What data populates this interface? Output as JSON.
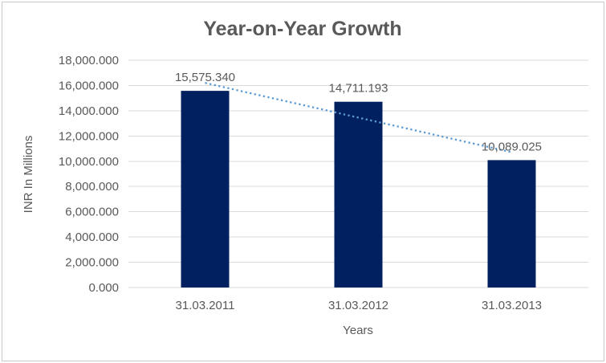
{
  "chart_data": {
    "type": "bar",
    "title": "Year-on-Year Growth",
    "xlabel": "Years",
    "ylabel": "INR In Millions",
    "categories": [
      "31.03.2011",
      "31.03.2012",
      "31.03.2013"
    ],
    "values": [
      15575.34,
      14711.193,
      10089.025
    ],
    "data_labels": [
      "15,575.340",
      "14,711.193",
      "10,089.025"
    ],
    "ylim": [
      0,
      18000
    ],
    "ytick_step": 2000,
    "ytick_labels": [
      "0.000",
      "2,000.000",
      "4,000.000",
      "6,000.000",
      "8,000.000",
      "10,000.000",
      "12,000.000",
      "14,000.000",
      "16,000.000",
      "18,000.000"
    ],
    "grid": true,
    "legend": "none",
    "bar_color": "#002060",
    "trendline": {
      "type": "linear",
      "style": "dotted",
      "color": "#5B9BD5"
    },
    "text_color": "#595959",
    "gridline_color": "#D9D9D9",
    "border_color": "#c9c9c9"
  }
}
